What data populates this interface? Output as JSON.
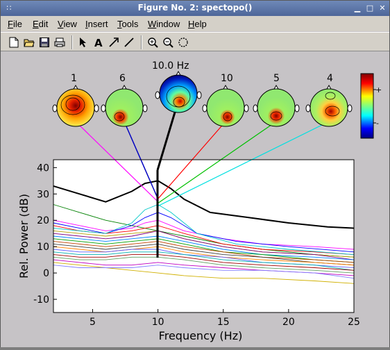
{
  "window": {
    "title": "Figure No. 2: spectopo()"
  },
  "menu": [
    {
      "label": "File",
      "key": "F"
    },
    {
      "label": "Edit",
      "key": "E"
    },
    {
      "label": "View",
      "key": "V"
    },
    {
      "label": "Insert",
      "key": "I"
    },
    {
      "label": "Tools",
      "key": "T"
    },
    {
      "label": "Window",
      "key": "W"
    },
    {
      "label": "Help",
      "key": "H"
    }
  ],
  "toolbar": {
    "buttons": [
      "new-file",
      "open-folder",
      "save",
      "print",
      "pointer-arrow",
      "text-tool",
      "arrow-tool",
      "line-tool",
      "zoom-in",
      "zoom-out",
      "rotate-3d"
    ]
  },
  "figure": {
    "freq_label": "10.0 Hz",
    "topo_labels": [
      "1",
      "6",
      "10",
      "5",
      "4"
    ],
    "colorbar": {
      "plus": "+",
      "minus": "-"
    }
  },
  "chart_data": {
    "type": "line",
    "title": "",
    "xlabel": "Frequency (Hz)",
    "ylabel": "Rel. Power (dB)",
    "xlim": [
      2,
      25
    ],
    "ylim": [
      -15,
      43
    ],
    "xticks": [
      5,
      10,
      15,
      20,
      25
    ],
    "yticks": [
      -10,
      0,
      10,
      20,
      30,
      40
    ],
    "marker_frequency": 10,
    "series": [
      {
        "color": "#000000",
        "linewidth": 2,
        "points": [
          [
            2,
            33
          ],
          [
            4,
            30
          ],
          [
            6,
            27
          ],
          [
            8,
            31
          ],
          [
            9,
            34
          ],
          [
            10,
            35
          ],
          [
            11,
            32
          ],
          [
            12,
            28
          ],
          [
            14,
            23
          ],
          [
            17,
            21
          ],
          [
            20,
            19
          ],
          [
            23,
            17.5
          ],
          [
            25,
            17
          ]
        ]
      },
      {
        "color": "#008000",
        "points": [
          [
            2,
            26
          ],
          [
            4,
            23
          ],
          [
            6,
            20
          ],
          [
            8,
            18
          ],
          [
            10,
            16
          ],
          [
            12,
            14
          ],
          [
            15,
            11
          ],
          [
            18,
            9
          ],
          [
            22,
            7
          ],
          [
            25,
            6
          ]
        ]
      },
      {
        "color": "#ff00ff",
        "points": [
          [
            2,
            20
          ],
          [
            4,
            18
          ],
          [
            6,
            16
          ],
          [
            8,
            17
          ],
          [
            9,
            19
          ],
          [
            10,
            20
          ],
          [
            12,
            16
          ],
          [
            15,
            13
          ],
          [
            18,
            11
          ],
          [
            22,
            10
          ],
          [
            25,
            9
          ]
        ]
      },
      {
        "color": "#0000ff",
        "points": [
          [
            2,
            19
          ],
          [
            4,
            17
          ],
          [
            6,
            15
          ],
          [
            8,
            18
          ],
          [
            9,
            21
          ],
          [
            10,
            23
          ],
          [
            11,
            21
          ],
          [
            13,
            15
          ],
          [
            16,
            12
          ],
          [
            20,
            10
          ],
          [
            25,
            8
          ]
        ]
      },
      {
        "color": "#ff0000",
        "points": [
          [
            2,
            18
          ],
          [
            4,
            16
          ],
          [
            6,
            15
          ],
          [
            8,
            16
          ],
          [
            10,
            18
          ],
          [
            12,
            15
          ],
          [
            15,
            11
          ],
          [
            18,
            9
          ],
          [
            22,
            8
          ],
          [
            25,
            7
          ]
        ]
      },
      {
        "color": "#00c8c8",
        "points": [
          [
            2,
            17
          ],
          [
            4,
            16
          ],
          [
            6,
            15
          ],
          [
            8,
            19
          ],
          [
            9,
            24
          ],
          [
            10,
            26
          ],
          [
            11,
            23
          ],
          [
            13,
            15
          ],
          [
            16,
            11
          ],
          [
            20,
            9
          ],
          [
            25,
            7
          ]
        ]
      },
      {
        "color": "#b8a000",
        "points": [
          [
            2,
            16
          ],
          [
            4,
            15
          ],
          [
            6,
            14
          ],
          [
            8,
            15
          ],
          [
            10,
            16
          ],
          [
            12,
            13
          ],
          [
            15,
            10
          ],
          [
            18,
            8
          ],
          [
            22,
            7
          ],
          [
            25,
            6
          ]
        ]
      },
      {
        "color": "#800080",
        "points": [
          [
            2,
            15
          ],
          [
            4,
            14
          ],
          [
            6,
            13
          ],
          [
            8,
            14
          ],
          [
            10,
            16
          ],
          [
            12,
            13
          ],
          [
            15,
            10
          ],
          [
            18,
            8
          ],
          [
            22,
            7
          ],
          [
            25,
            5
          ]
        ]
      },
      {
        "color": "#0080ff",
        "points": [
          [
            2,
            14
          ],
          [
            4,
            13
          ],
          [
            6,
            12
          ],
          [
            8,
            13
          ],
          [
            10,
            14
          ],
          [
            12,
            12
          ],
          [
            15,
            9
          ],
          [
            18,
            7
          ],
          [
            22,
            6
          ],
          [
            25,
            5
          ]
        ]
      },
      {
        "color": "#00a000",
        "points": [
          [
            2,
            13
          ],
          [
            4,
            12
          ],
          [
            6,
            11
          ],
          [
            8,
            12
          ],
          [
            10,
            13
          ],
          [
            12,
            11
          ],
          [
            15,
            8
          ],
          [
            18,
            7
          ],
          [
            22,
            5
          ],
          [
            25,
            4
          ]
        ]
      },
      {
        "color": "#c04000",
        "points": [
          [
            2,
            12
          ],
          [
            4,
            11
          ],
          [
            6,
            10
          ],
          [
            8,
            11
          ],
          [
            10,
            12
          ],
          [
            12,
            10
          ],
          [
            15,
            8
          ],
          [
            18,
            6
          ],
          [
            22,
            5
          ],
          [
            25,
            4
          ]
        ]
      },
      {
        "color": "#404040",
        "points": [
          [
            2,
            11
          ],
          [
            4,
            10
          ],
          [
            6,
            9
          ],
          [
            8,
            10
          ],
          [
            10,
            11
          ],
          [
            12,
            9
          ],
          [
            15,
            7
          ],
          [
            18,
            6
          ],
          [
            22,
            4
          ],
          [
            25,
            3
          ]
        ]
      },
      {
        "color": "#ff8000",
        "points": [
          [
            2,
            10
          ],
          [
            4,
            9
          ],
          [
            6,
            8
          ],
          [
            8,
            9
          ],
          [
            10,
            10
          ],
          [
            12,
            8
          ],
          [
            15,
            6
          ],
          [
            18,
            5
          ],
          [
            22,
            4
          ],
          [
            25,
            3
          ]
        ]
      },
      {
        "color": "#6060ff",
        "points": [
          [
            2,
            9
          ],
          [
            4,
            8
          ],
          [
            6,
            8
          ],
          [
            8,
            9
          ],
          [
            10,
            9
          ],
          [
            12,
            7
          ],
          [
            15,
            6
          ],
          [
            18,
            4
          ],
          [
            22,
            3
          ],
          [
            25,
            2
          ]
        ]
      },
      {
        "color": "#00b0b0",
        "points": [
          [
            2,
            8
          ],
          [
            4,
            7
          ],
          [
            6,
            7
          ],
          [
            8,
            8
          ],
          [
            10,
            8
          ],
          [
            12,
            7
          ],
          [
            15,
            5
          ],
          [
            18,
            4
          ],
          [
            22,
            3
          ],
          [
            25,
            1
          ]
        ]
      },
      {
        "color": "#a00000",
        "points": [
          [
            2,
            7
          ],
          [
            4,
            6
          ],
          [
            6,
            6
          ],
          [
            8,
            7
          ],
          [
            10,
            7
          ],
          [
            12,
            6
          ],
          [
            15,
            4
          ],
          [
            18,
            3
          ],
          [
            22,
            2
          ],
          [
            25,
            1
          ]
        ]
      },
      {
        "color": "#60a060",
        "points": [
          [
            2,
            6
          ],
          [
            4,
            5
          ],
          [
            6,
            5
          ],
          [
            8,
            6
          ],
          [
            10,
            6
          ],
          [
            12,
            5
          ],
          [
            15,
            3
          ],
          [
            18,
            2
          ],
          [
            22,
            1
          ],
          [
            25,
            0
          ]
        ]
      },
      {
        "color": "#d0b000",
        "points": [
          [
            2,
            4
          ],
          [
            4,
            3
          ],
          [
            6,
            2
          ],
          [
            8,
            1
          ],
          [
            10,
            0
          ],
          [
            12,
            -1
          ],
          [
            15,
            -2
          ],
          [
            18,
            -2
          ],
          [
            22,
            -3
          ],
          [
            25,
            -4
          ]
        ]
      },
      {
        "color": "#c000c0",
        "points": [
          [
            2,
            5
          ],
          [
            4,
            4
          ],
          [
            6,
            3
          ],
          [
            8,
            3
          ],
          [
            10,
            4
          ],
          [
            12,
            3
          ],
          [
            15,
            2
          ],
          [
            18,
            1
          ],
          [
            22,
            0
          ],
          [
            25,
            -1
          ]
        ]
      },
      {
        "color": "#8080ff",
        "points": [
          [
            2,
            3
          ],
          [
            4,
            2
          ],
          [
            6,
            2
          ],
          [
            8,
            2
          ],
          [
            10,
            3
          ],
          [
            12,
            2
          ],
          [
            15,
            1
          ],
          [
            18,
            1
          ],
          [
            22,
            0
          ],
          [
            25,
            -2
          ]
        ]
      }
    ]
  }
}
